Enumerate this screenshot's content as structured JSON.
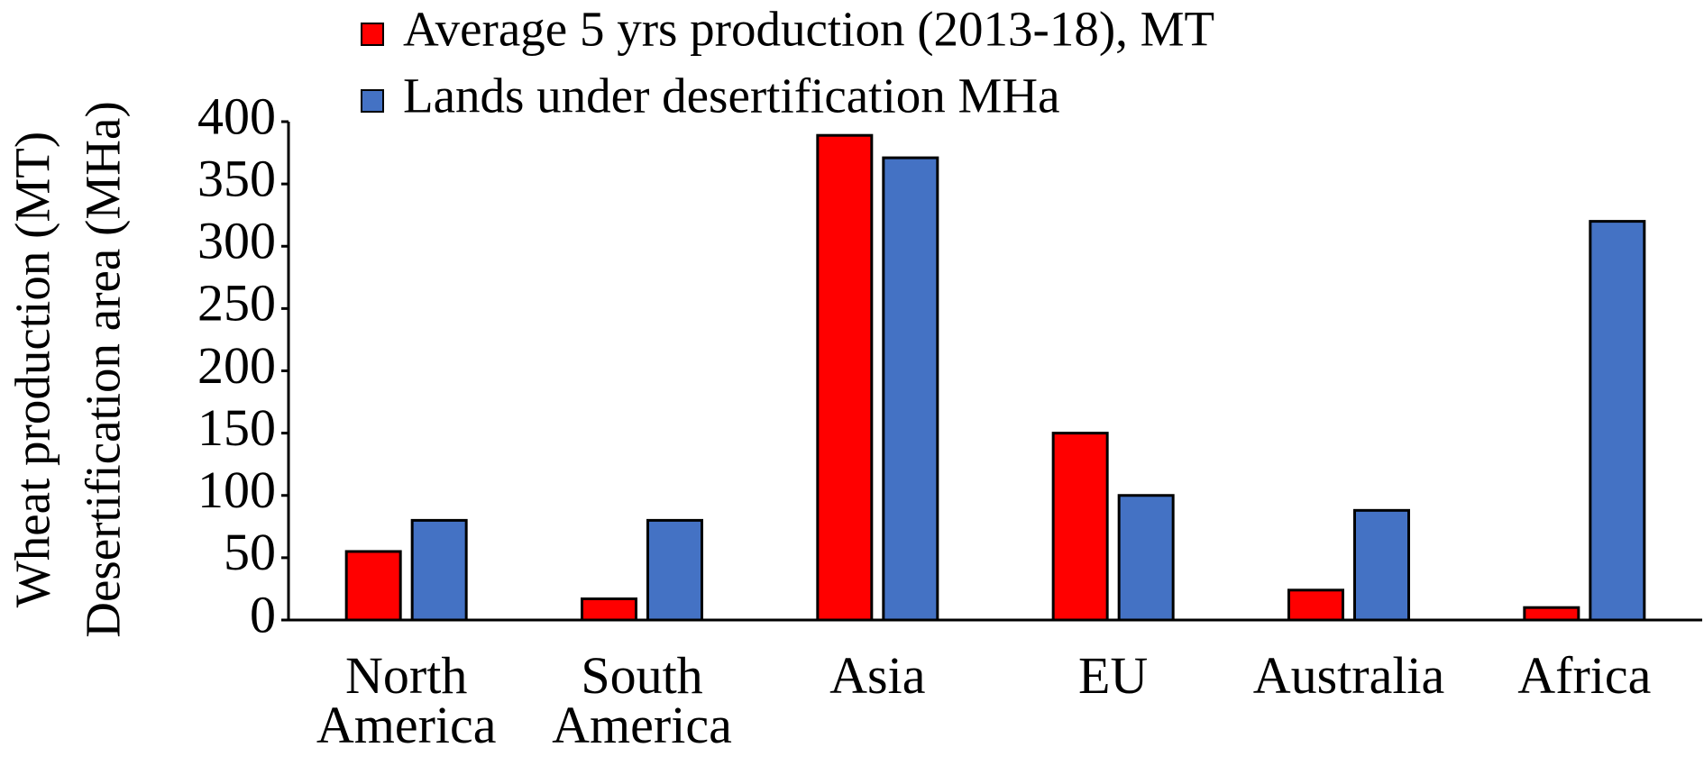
{
  "chart_data": {
    "type": "bar",
    "ylabel": [
      "Wheat production (MT)",
      "Desertification area (MHa)"
    ],
    "categories": [
      "North America",
      "South America",
      "Asia",
      "EU",
      "Australia",
      "Africa"
    ],
    "series": [
      {
        "name": "Average 5 yrs production (2013-18), MT",
        "color": "#ff0000",
        "values": [
          55,
          17,
          389,
          150,
          24,
          10
        ]
      },
      {
        "name": "Lands under desertification MHa",
        "color": "#4472c4",
        "values": [
          80,
          80,
          371,
          100,
          88,
          320
        ]
      }
    ],
    "ylim": [
      0,
      400
    ],
    "yticks": [
      0,
      50,
      100,
      150,
      200,
      250,
      300,
      350,
      400
    ],
    "grid": false
  }
}
